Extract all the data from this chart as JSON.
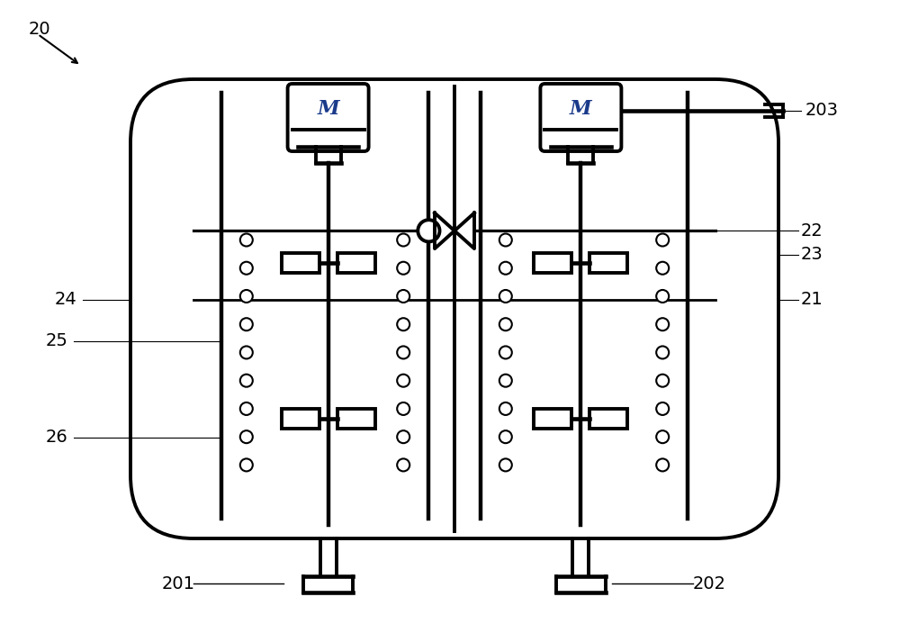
{
  "bg_color": "#ffffff",
  "line_color": "#000000",
  "motor_text_color": "#1a3a8a",
  "figure_size": [
    10.0,
    6.93
  ],
  "dpi": 100
}
